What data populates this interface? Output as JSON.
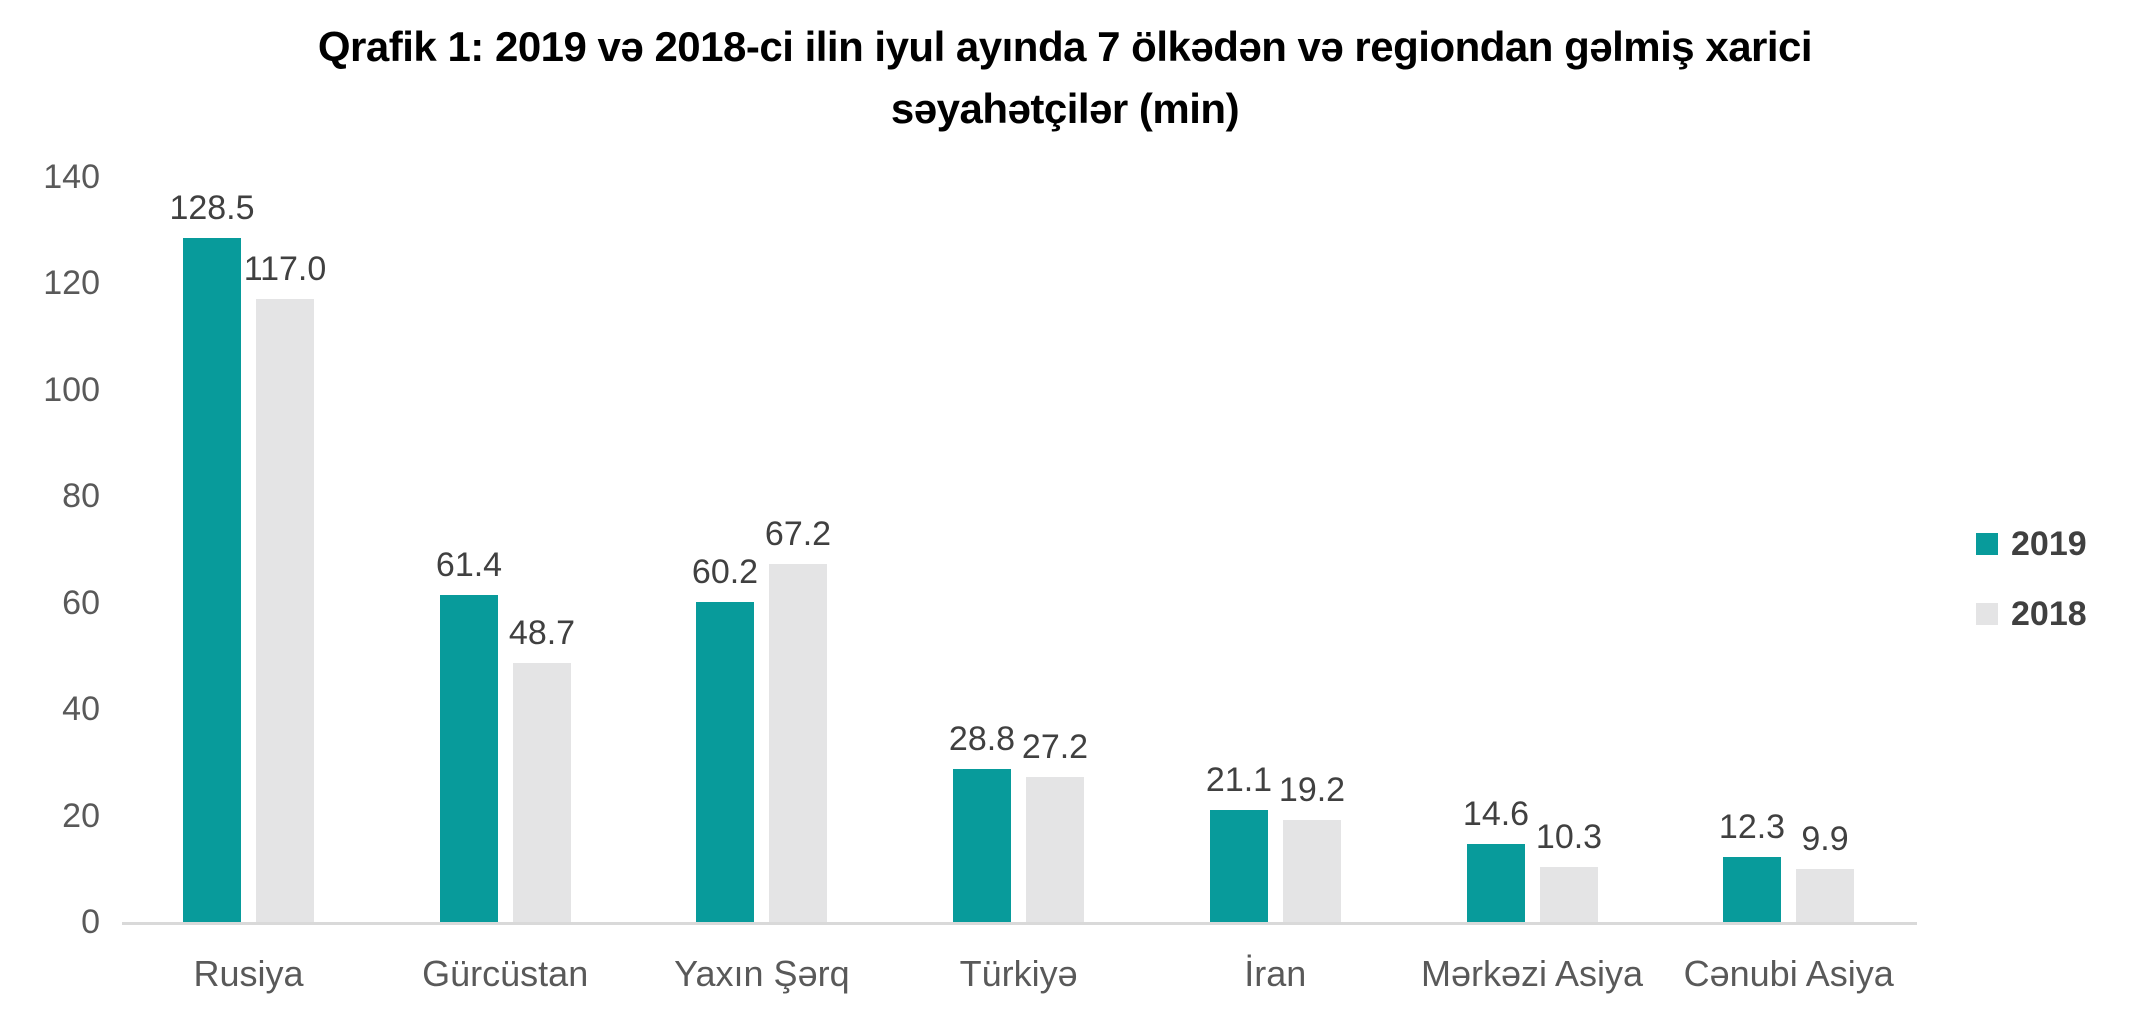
{
  "title_lines": [
    "Qrafik 1: 2019 və 2018-ci ilin iyul ayında 7 ölkədən və regiondan gəlmiş xarici",
    "səyahətçilər (min)"
  ],
  "colors": {
    "series_2019": "#089B9B",
    "series_2018": "#E4E4E5",
    "axis_line": "#D9D9D9",
    "value_label_text": "#404040",
    "tick_text": "#595959",
    "title_text": "#000000",
    "background": "#FFFFFF"
  },
  "legend": {
    "position": "right",
    "items": [
      {
        "label": "2019",
        "color": "#089B9B"
      },
      {
        "label": "2018",
        "color": "#E4E4E5"
      }
    ]
  },
  "chart_data": {
    "type": "bar",
    "title": "Qrafik 1: 2019 və 2018-ci ilin iyul ayında 7 ölkədən və regiondan gəlmiş xarici səyahətçilər (min)",
    "categories": [
      "Rusiya",
      "Gürcüstan",
      "Yaxın Şərq",
      "Türkiyə",
      "İran",
      "Mərkəzi Asiya",
      "Cənubi Asiya"
    ],
    "series": [
      {
        "name": "2019",
        "color": "#089B9B",
        "values": [
          128.5,
          61.4,
          60.2,
          28.8,
          21.1,
          14.6,
          12.3
        ]
      },
      {
        "name": "2018",
        "color": "#E4E4E5",
        "values": [
          117.0,
          48.7,
          67.2,
          27.2,
          19.2,
          10.3,
          9.9
        ]
      }
    ],
    "xlabel": "",
    "ylabel": "",
    "ylim": [
      0,
      140
    ],
    "yticks": [
      0,
      20,
      40,
      60,
      80,
      100,
      120,
      140
    ],
    "grid": false,
    "legend_position": "right",
    "value_labels": true,
    "value_label_decimals": 1
  }
}
